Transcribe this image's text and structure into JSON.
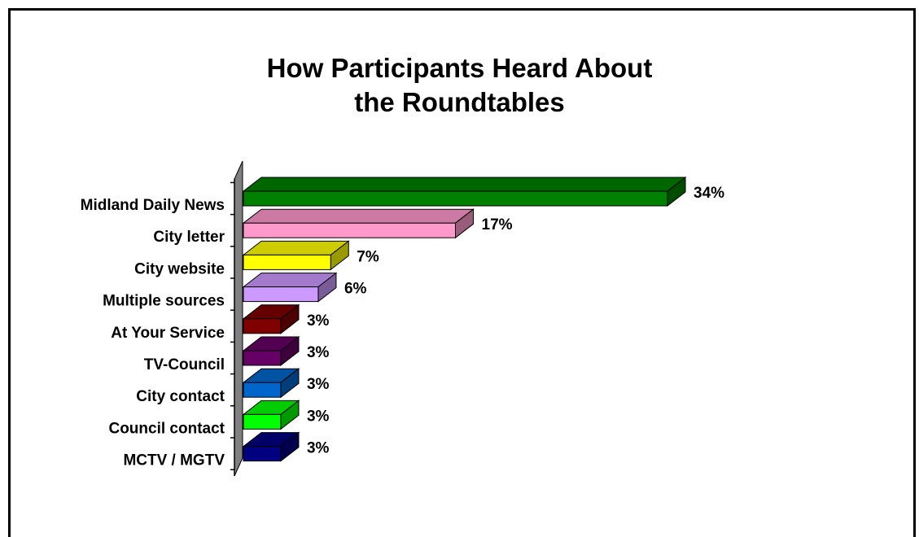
{
  "chart_data": {
    "type": "bar",
    "orientation": "horizontal",
    "title_lines": [
      "How Participants Heard About",
      "the Roundtables"
    ],
    "categories": [
      "Midland Daily News",
      "City letter",
      "City website",
      "Multiple sources",
      "At Your Service",
      "TV-Council",
      "City contact",
      "Council contact",
      "MCTV / MGTV"
    ],
    "values": [
      34,
      17,
      7,
      6,
      3,
      3,
      3,
      3,
      3
    ],
    "value_labels": [
      "34%",
      "17%",
      "7%",
      "6%",
      "3%",
      "3%",
      "3%",
      "3%",
      "3%"
    ],
    "unit": "%",
    "xlim": [
      0,
      34
    ],
    "colors": [
      "#008000",
      "#FF99CC",
      "#FFFF00",
      "#CC99FF",
      "#800000",
      "#660066",
      "#0066CC",
      "#00FF00",
      "#000080"
    ],
    "grid": false,
    "legend": "none",
    "style": "3d"
  }
}
